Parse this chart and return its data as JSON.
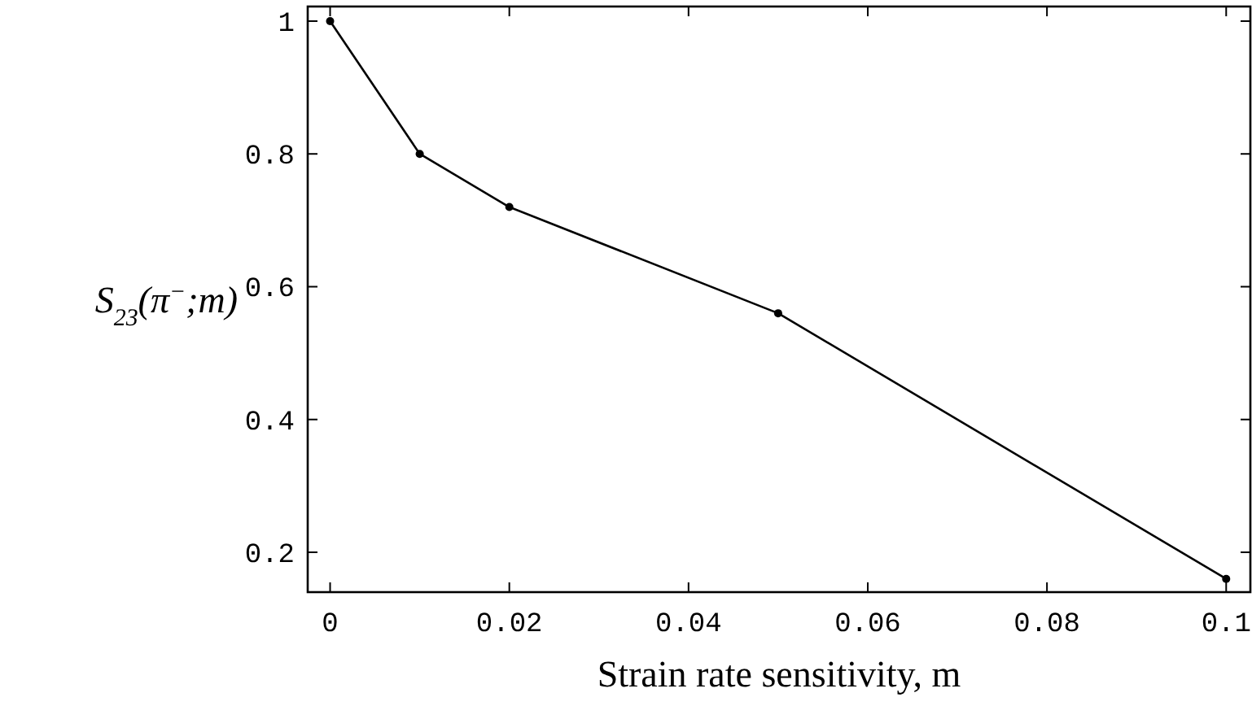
{
  "chart_data": {
    "type": "line",
    "xlabel": "Strain rate sensitivity, m",
    "ylabel": "S$_{23}$(π$^{−}$;m)",
    "x": [
      0,
      0.01,
      0.02,
      0.05,
      0.1
    ],
    "series": [
      {
        "color": "#000000",
        "values": [
          1.0,
          0.8,
          0.72,
          0.56,
          0.16
        ]
      }
    ],
    "xlim": [
      -0.0025,
      0.1027
    ],
    "xticks": [
      0,
      0.02,
      0.04,
      0.06,
      0.08,
      0.1
    ],
    "ylim": [
      0.14,
      1.022
    ],
    "yticks": [
      0.2,
      0.4,
      0.6,
      0.8,
      1
    ],
    "marker": "circle",
    "line_style": "solid"
  }
}
